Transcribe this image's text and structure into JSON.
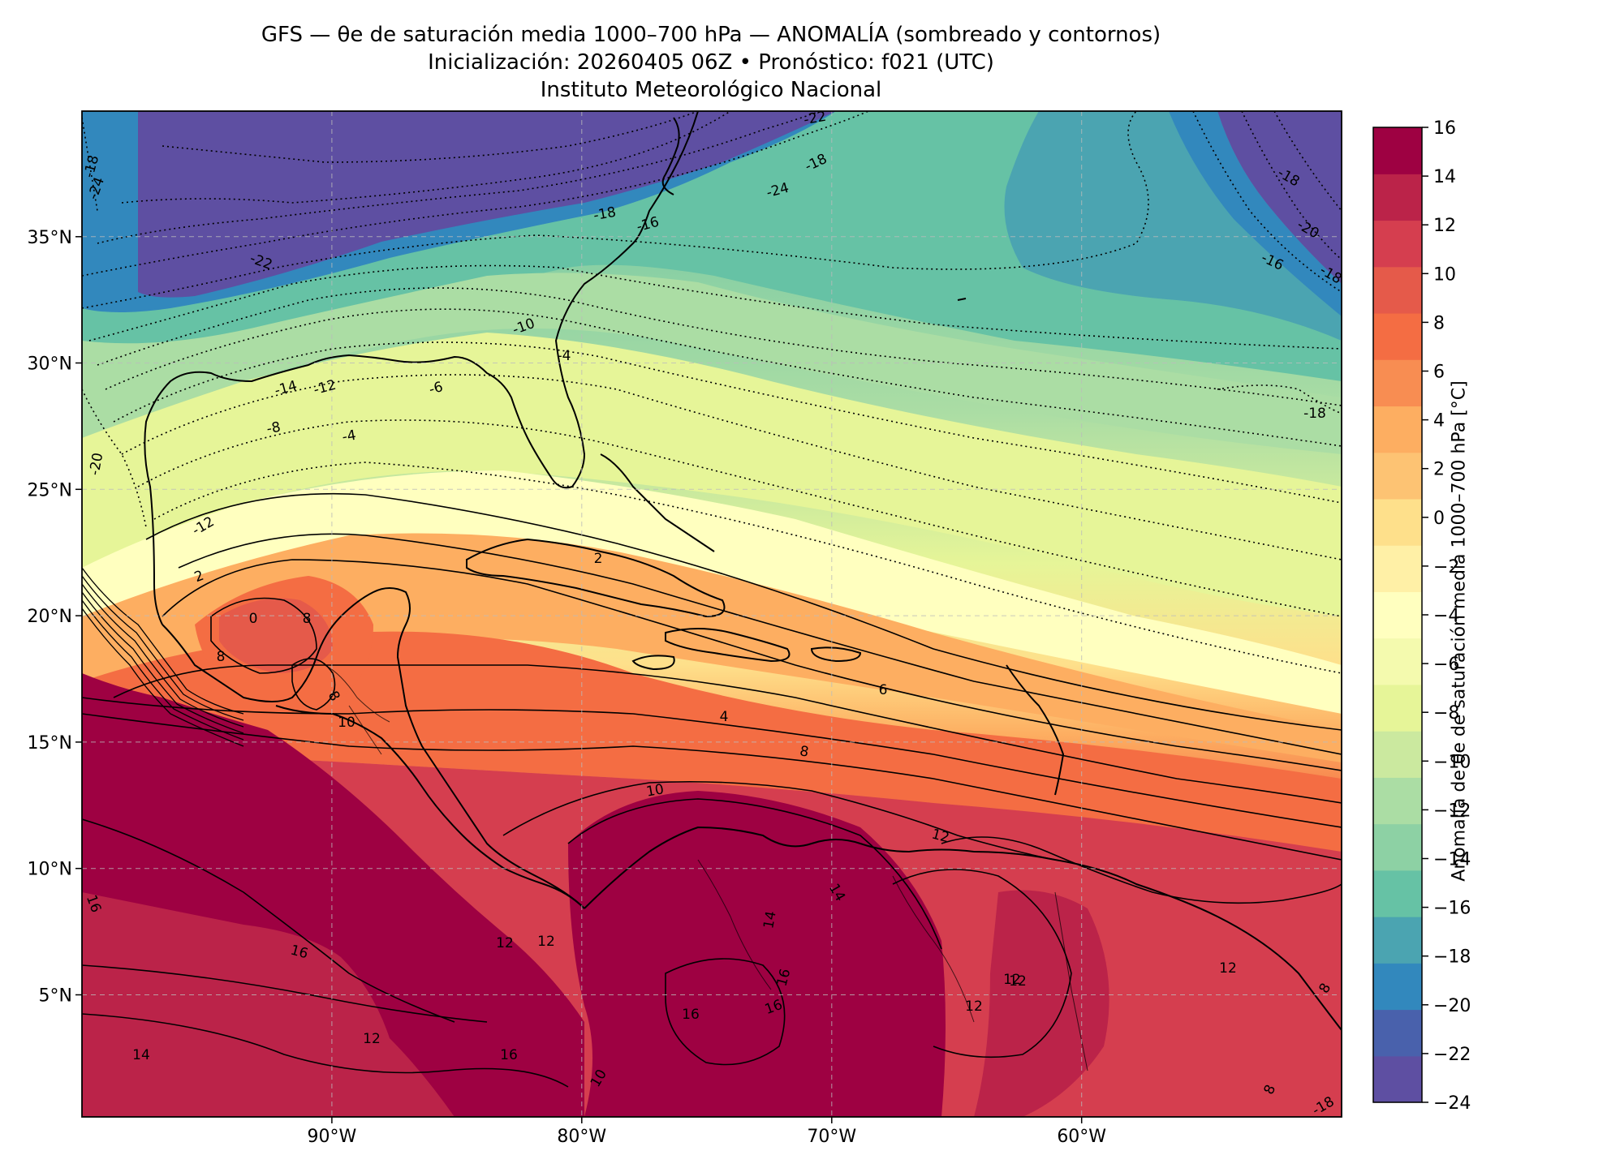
{
  "header": {
    "title": "GFS — θe de saturación media 1000–700 hPa — ANOMALÍA (sombreado y contornos)",
    "subtitle": "Inicialización: 20260405 06Z   •   Pronóstico: f021 (UTC)",
    "institution": "Instituto Meteorológico Nacional"
  },
  "colorbar": {
    "label": "Anomalía de θe de saturación media 1000–700 hPa [°C]",
    "min": -24,
    "max": 16,
    "ticks": [
      "16",
      "14",
      "12",
      "10",
      "8",
      "6",
      "4",
      "2",
      "0",
      "−2",
      "−4",
      "−6",
      "−8",
      "−10",
      "−12",
      "−14",
      "−16",
      "−18",
      "−20",
      "−22",
      "−24"
    ],
    "colors": [
      "#5e4fa2",
      "#4961ac",
      "#3288bd",
      "#4ba4b1",
      "#66c2a5",
      "#8dd1a4",
      "#abdda4",
      "#cbe99f",
      "#e6f598",
      "#f4faae",
      "#ffffbf",
      "#fff0a6",
      "#fee08b",
      "#fdc373",
      "#fdae61",
      "#f88d52",
      "#f46d43",
      "#e55a4a",
      "#d53e4f",
      "#bb2349",
      "#9e0142"
    ]
  },
  "axes": {
    "lon_ticks": [
      "90°W",
      "80°W",
      "70°W",
      "60°W"
    ],
    "lat_ticks": [
      "35°N",
      "30°N",
      "25°N",
      "20°N",
      "15°N",
      "10°N",
      "5°N"
    ],
    "lon_range": [
      -99.7,
      -49.3
    ],
    "lat_range": [
      0.1,
      39.9
    ]
  },
  "map": {
    "contour_labels": [
      "-18",
      "-24",
      "-20",
      "-18",
      "-16",
      "-18",
      "-22",
      "-24",
      "-22",
      "-18",
      "-20",
      "-16",
      "-18",
      "-10",
      "-4",
      "-6",
      "-8",
      "-4",
      "-14",
      "-12",
      "-18",
      "-12",
      "2",
      "2",
      "0",
      "8",
      "8",
      "8",
      "10",
      "6",
      "4",
      "8",
      "10",
      "12",
      "12",
      "12",
      "16",
      "16",
      "14",
      "14",
      "16",
      "12",
      "12",
      "12",
      "14",
      "12",
      "16",
      "16",
      "16",
      "10",
      "12",
      "8",
      "8",
      "-18"
    ]
  }
}
